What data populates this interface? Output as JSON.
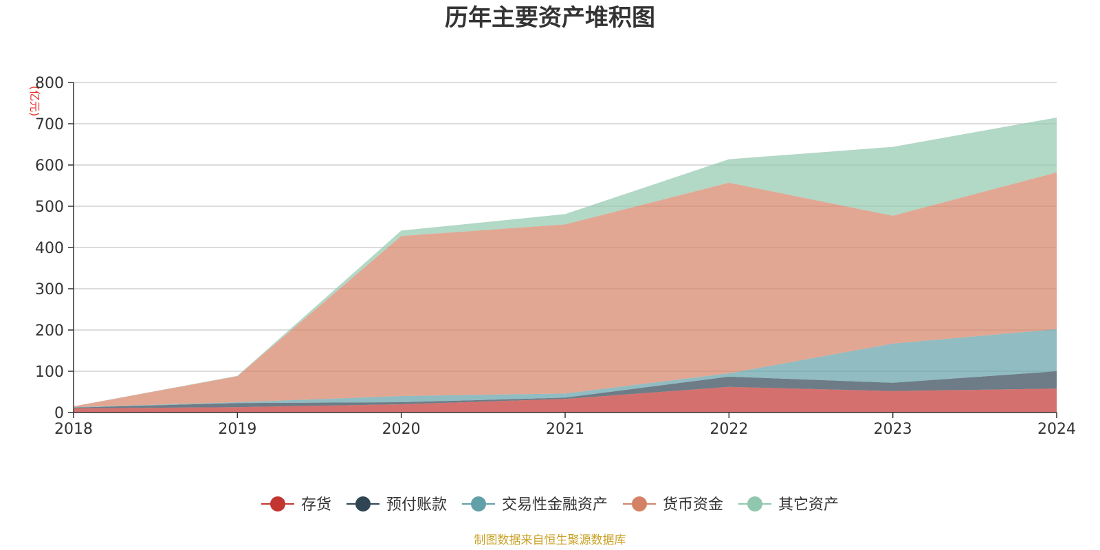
{
  "chart_data": {
    "type": "area",
    "stacked": true,
    "title": "历年主要资产堆积图",
    "unit": "(亿元)",
    "source": "制图数据来自恒生聚源数据库",
    "x": [
      "2018",
      "2019",
      "2020",
      "2021",
      "2022",
      "2023",
      "2024"
    ],
    "ylim": [
      0,
      800
    ],
    "yticks": [
      "0",
      "100",
      "200",
      "300",
      "400",
      "500",
      "600",
      "700",
      "800"
    ],
    "grid": true,
    "legend_position": "bottom",
    "series": [
      {
        "name": "存货",
        "color": "#c23531",
        "values": [
          10,
          13,
          20,
          33,
          62,
          52,
          58
        ]
      },
      {
        "name": "预付账款",
        "color": "#2f4554",
        "values": [
          2,
          10,
          5,
          3,
          25,
          20,
          42
        ]
      },
      {
        "name": "交易性金融资产",
        "color": "#61a0a8",
        "values": [
          1,
          2,
          15,
          10,
          8,
          95,
          102
        ]
      },
      {
        "name": "货币资金",
        "color": "#d48265",
        "values": [
          2,
          63,
          388,
          410,
          462,
          310,
          380
        ]
      },
      {
        "name": "其它资产",
        "color": "#91c7ae",
        "values": [
          0,
          1,
          13,
          25,
          57,
          167,
          133
        ]
      }
    ]
  }
}
